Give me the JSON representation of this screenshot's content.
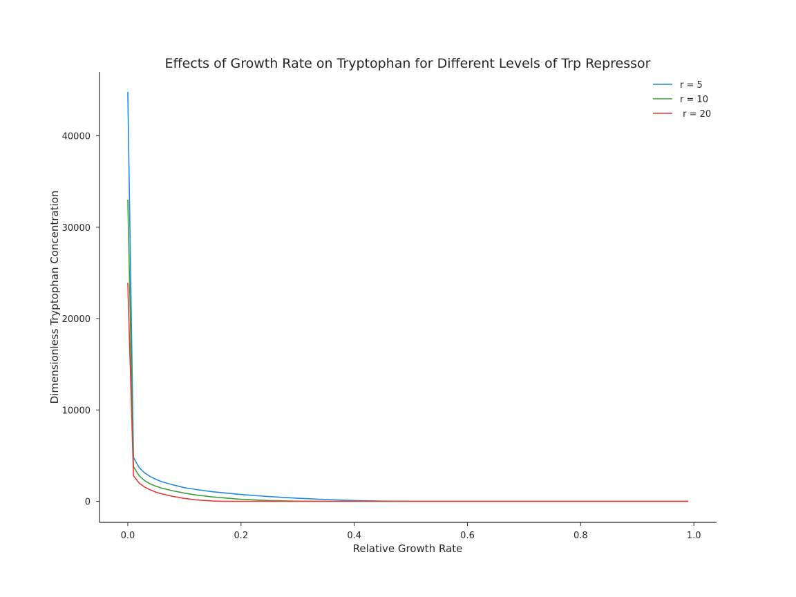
{
  "chart_data": {
    "type": "line",
    "title": "Effects of Growth Rate on Tryptophan for Different Levels of Trp Repressor",
    "xlabel": "Relative Growth Rate",
    "ylabel": "Dimensionless Tryptophan Concentration",
    "xlim": [
      -0.05,
      1.04
    ],
    "ylim": [
      -2300,
      47000
    ],
    "x_ticks": [
      0.0,
      0.2,
      0.4,
      0.6,
      0.8,
      1.0
    ],
    "x_tick_labels": [
      "0.0",
      "0.2",
      "0.4",
      "0.6",
      "0.8",
      "1.0"
    ],
    "y_ticks": [
      0,
      10000,
      20000,
      30000,
      40000
    ],
    "y_tick_labels": [
      "0",
      "10000",
      "20000",
      "30000",
      "40000"
    ],
    "grid": false,
    "legend_position": "top-right",
    "series": [
      {
        "name": "r = 5",
        "color": "#1f88e5",
        "x": [
          0.0,
          0.01,
          0.02,
          0.03,
          0.04,
          0.05,
          0.06,
          0.08,
          0.1,
          0.12,
          0.15,
          0.2,
          0.25,
          0.3,
          0.35,
          0.4,
          0.45,
          0.5,
          0.6,
          0.7,
          0.8,
          0.9,
          0.99
        ],
        "y": [
          44800,
          4800,
          3700,
          3100,
          2700,
          2400,
          2150,
          1800,
          1500,
          1300,
          1050,
          750,
          520,
          340,
          200,
          90,
          30,
          5,
          0,
          0,
          0,
          0,
          0
        ]
      },
      {
        "name": "r = 10",
        "color": "#3a9e3a",
        "x": [
          0.0,
          0.01,
          0.02,
          0.03,
          0.04,
          0.05,
          0.06,
          0.08,
          0.1,
          0.12,
          0.15,
          0.2,
          0.25,
          0.3,
          0.35,
          0.4,
          0.45,
          0.5,
          0.6,
          0.7,
          0.8,
          0.9,
          0.99
        ],
        "y": [
          33000,
          3800,
          2800,
          2250,
          1900,
          1650,
          1450,
          1150,
          900,
          700,
          480,
          230,
          90,
          20,
          0,
          0,
          0,
          0,
          0,
          0,
          0,
          0,
          0
        ]
      },
      {
        "name": " r = 20",
        "color": "#e53935",
        "x": [
          0.0,
          0.01,
          0.02,
          0.03,
          0.04,
          0.05,
          0.06,
          0.08,
          0.1,
          0.12,
          0.15,
          0.17,
          0.2,
          0.25,
          0.3,
          0.4,
          0.5,
          0.6,
          0.7,
          0.8,
          0.9,
          0.99
        ],
        "y": [
          23900,
          2800,
          2000,
          1550,
          1250,
          1000,
          820,
          540,
          320,
          160,
          40,
          0,
          0,
          0,
          0,
          0,
          0,
          0,
          0,
          0,
          0,
          0
        ]
      }
    ]
  }
}
